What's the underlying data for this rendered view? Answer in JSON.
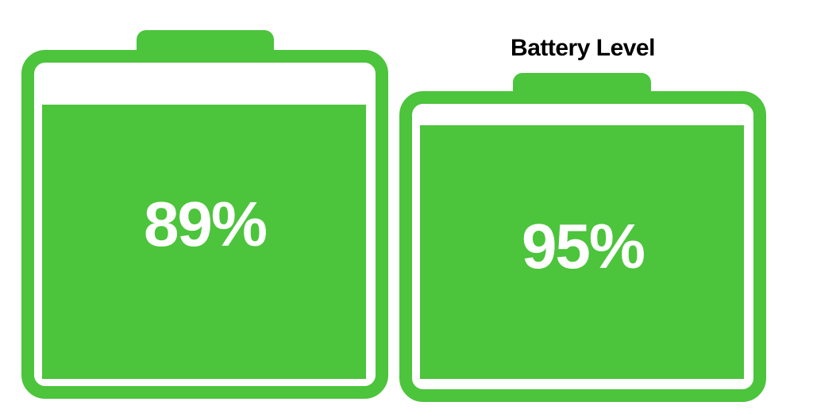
{
  "title": "Battery Level",
  "batteries": [
    {
      "name": "left-battery",
      "percent": 89,
      "label": "89%"
    },
    {
      "name": "right-battery",
      "percent": 95,
      "label": "95%"
    }
  ],
  "colors": {
    "green": "#4CC43C",
    "background": "#FFFFFF",
    "title_text": "#000000",
    "percent_text": "#FFFFFF"
  },
  "icons": [
    "battery-icon",
    "battery-icon"
  ],
  "chart_data": {
    "type": "bar",
    "title": "Battery Level",
    "categories": [
      "battery-1",
      "battery-2"
    ],
    "values": [
      89,
      95
    ],
    "data_labels": [
      "89%",
      "95%"
    ],
    "unit": "%",
    "ylim": [
      0,
      100
    ],
    "style": "pictorial battery gauges, green fill on white",
    "legend": "none",
    "grid": "off"
  }
}
